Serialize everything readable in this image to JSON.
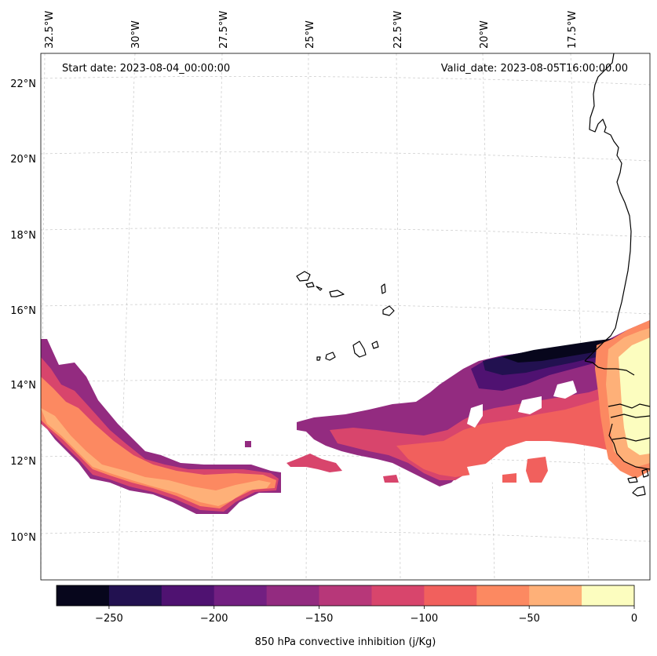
{
  "header": {
    "start_date": "Start date: 2023-08-04_00:00:00",
    "valid_date": "Valid_date: 2023-08-05T16:00:00.00"
  },
  "lon_labels": [
    "32.5°W",
    "30°W",
    "27.5°W",
    "25°W",
    "22.5°W",
    "20°W",
    "17.5°W"
  ],
  "lat_labels": [
    "22°N",
    "20°N",
    "18°N",
    "16°N",
    "14°N",
    "12°N",
    "10°N"
  ],
  "colorbar": {
    "label": "850 hPa convective inhibition (j/Kg)",
    "ticks": [
      "−250",
      "−200",
      "−150",
      "−100",
      "−50",
      "0"
    ],
    "levels": [
      -275,
      -250,
      -225,
      -200,
      -175,
      -150,
      -125,
      -100,
      -75,
      -50,
      -25,
      0
    ],
    "colors": [
      "#07061c",
      "#221150",
      "#4f1271",
      "#721f81",
      "#932b80",
      "#b73779",
      "#d8456c",
      "#f1605d",
      "#fc8961",
      "#feb078",
      "#fcfdbf"
    ]
  },
  "chart_data": {
    "type": "heatmap",
    "variable": "850 hPa convective inhibition",
    "units": "j/Kg",
    "colormap": "magma",
    "value_range": [
      -275,
      0
    ],
    "lon_range": [
      "32.5°W",
      "16°W"
    ],
    "lat_range": [
      "9°N",
      "22.5°N"
    ],
    "regions": [
      {
        "area": "near coast of Senegal/Gambia (16°W–18°W, 12°N–15.5°N)",
        "values_range": [
          -25,
          0
        ]
      },
      {
        "area": "strip north of coast band (17°W–21°W, ~14.5°N)",
        "values_range": [
          -275,
          -225
        ]
      },
      {
        "area": "band 18°W–23°W, 12°N–14°N",
        "values_range": [
          -150,
          -75
        ]
      },
      {
        "area": "southwest band 27°W–32.5°W, 11°N–14.5°N",
        "values_range": [
          -125,
          -25
        ]
      }
    ]
  }
}
